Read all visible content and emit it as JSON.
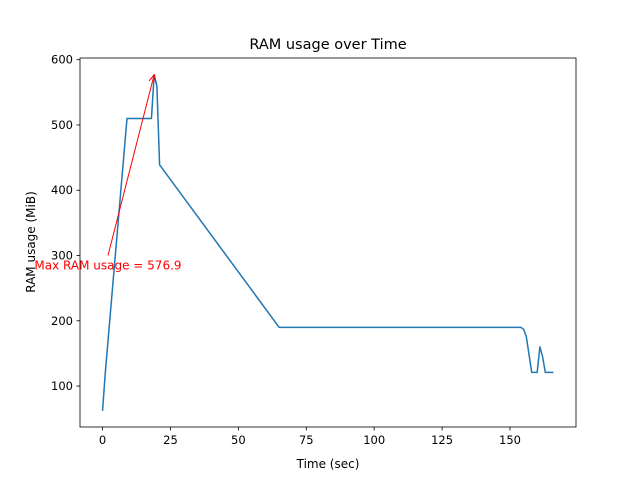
{
  "chart_data": {
    "type": "line",
    "title": "RAM usage over Time",
    "xlabel": "Time (sec)",
    "ylabel": "RAM usage (MiB)",
    "xlim": [
      -8.3,
      174.3
    ],
    "ylim": [
      37.3,
      602.6
    ],
    "xticks": [
      0,
      25,
      50,
      75,
      100,
      125,
      150
    ],
    "yticks": [
      100,
      200,
      300,
      400,
      500,
      600
    ],
    "grid": false,
    "color": "#1f77b4",
    "series": [
      {
        "x": [
          0,
          1,
          9,
          10,
          17,
          18,
          19,
          20,
          21,
          65,
          154,
          155,
          156,
          158,
          159,
          160,
          161,
          162,
          163,
          164,
          165,
          166
        ],
        "y": [
          62,
          120,
          510,
          510,
          510,
          510,
          577,
          560,
          439,
          190,
          190,
          187,
          176,
          121,
          121,
          121,
          160,
          145,
          121,
          121,
          121,
          121
        ]
      }
    ],
    "annotation": {
      "text": "Max RAM usage = 576.9",
      "color": "#ff0000",
      "arrow_from": [
        2,
        300
      ],
      "arrow_to": [
        19,
        576.9
      ]
    }
  }
}
